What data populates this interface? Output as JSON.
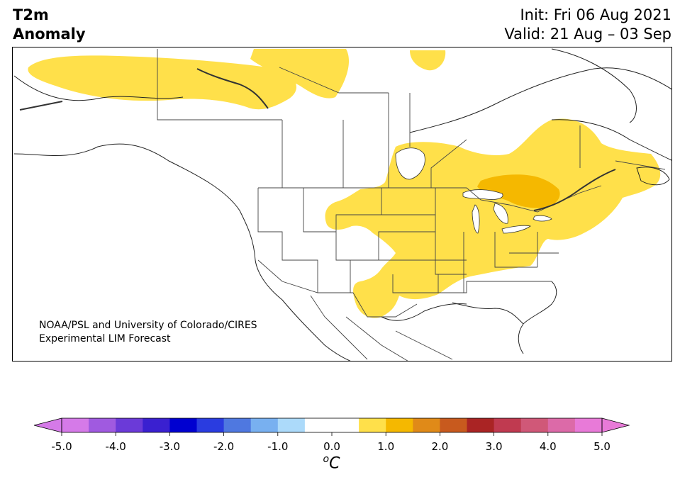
{
  "header": {
    "title_line1": "T2m",
    "title_line2": "Anomaly",
    "init": "Init: Fri 06 Aug 2021",
    "valid": "Valid: 21 Aug – 03 Sep"
  },
  "credit": {
    "line1": "NOAA/PSL and University of Colorado/CIRES",
    "line2": "Experimental LIM Forecast"
  },
  "colorbar": {
    "unit_base": "C",
    "unit_super": "o",
    "tick_labels": [
      "-5.0",
      "-4.0",
      "-3.0",
      "-2.0",
      "-1.0",
      "0.0",
      "1.0",
      "2.0",
      "3.0",
      "4.0",
      "5.0"
    ],
    "colors": [
      "#d57ae8",
      "#a05ae0",
      "#6b3ad8",
      "#3a20d0",
      "#0000d0",
      "#2a3ce0",
      "#4f78e0",
      "#78b0f0",
      "#acdafa",
      "#ffffff",
      "#ffffff",
      "#ffe04a",
      "#f5b800",
      "#e08a18",
      "#c85a1e",
      "#aa2424",
      "#c03a50",
      "#d05878",
      "#dc6aa8",
      "#e87ad8"
    ],
    "under_color": "#d57ae8",
    "over_color": "#e87ad8"
  },
  "map": {
    "anomaly_colors": {
      "plus_0_5_to_1": "#ffe04a",
      "plus_1_to_1_5": "#f5b800"
    }
  }
}
